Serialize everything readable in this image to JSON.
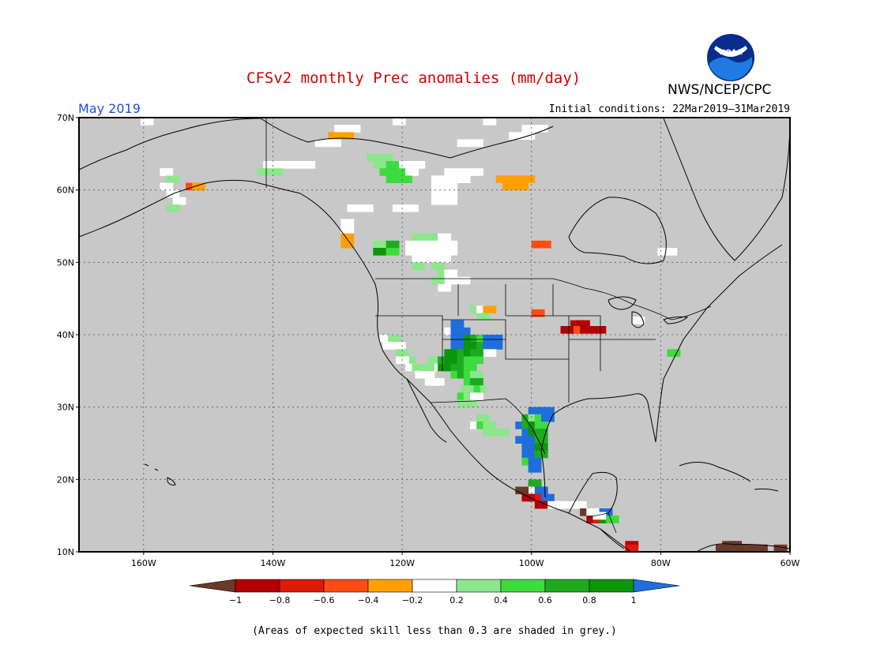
{
  "header": {
    "title": "CFSv2 monthly Prec anomalies (mm/day)",
    "month": "May 2019",
    "initial_conditions": "Initial conditions: 22Mar2019–31Mar2019",
    "agency": "NWS/NCEP/CPC",
    "logo_text": "NOAA"
  },
  "map": {
    "lon_range": [
      -170,
      -60
    ],
    "lat_range": [
      10,
      70
    ],
    "background_color": "#c8c8c8",
    "grid": true,
    "lat_ticks": [
      "10N",
      "20N",
      "30N",
      "40N",
      "50N",
      "60N",
      "70N"
    ],
    "lon_ticks": [
      "160W",
      "140W",
      "120W",
      "100W",
      "80W",
      "60W"
    ]
  },
  "legend": {
    "labels": [
      "−1",
      "−0.8",
      "−0.6",
      "−0.4",
      "−0.2",
      "0.2",
      "0.4",
      "0.6",
      "0.8",
      "1"
    ],
    "colors": [
      "#6b3a28",
      "#b40000",
      "#dc1a0a",
      "#ff4b14",
      "#ffa000",
      "#ffffff",
      "#8ce68c",
      "#3cdc3c",
      "#1eaa1e",
      "#0c960c",
      "#1e6edc"
    ]
  },
  "footnote": "(Areas of expected skill less than 0.3 are shaded in grey.)",
  "anomaly_cells": [
    {
      "lon": -160,
      "lat": 69.5,
      "v": "white"
    },
    {
      "lon": -130,
      "lat": 68.5,
      "v": "white"
    },
    {
      "lon": -128,
      "lat": 68.5,
      "v": "white"
    },
    {
      "lon": -129,
      "lat": 67.5,
      "v": "o04"
    },
    {
      "lon": -131,
      "lat": 67.5,
      "v": "o04"
    },
    {
      "lon": -121,
      "lat": 69.5,
      "v": "white"
    },
    {
      "lon": -107,
      "lat": 69.5,
      "v": "white"
    },
    {
      "lon": -101,
      "lat": 68.5,
      "v": "white"
    },
    {
      "lon": -99,
      "lat": 68.5,
      "v": "white"
    },
    {
      "lon": -103,
      "lat": 67.5,
      "v": "white"
    },
    {
      "lon": -101,
      "lat": 67.5,
      "v": "white"
    },
    {
      "lon": -133,
      "lat": 66.5,
      "v": "white"
    },
    {
      "lon": -131,
      "lat": 66.5,
      "v": "white"
    },
    {
      "lon": -109,
      "lat": 66.5,
      "v": "white"
    },
    {
      "lon": -111,
      "lat": 66.5,
      "v": "white"
    },
    {
      "lon": -125,
      "lat": 64.5,
      "v": "g02"
    },
    {
      "lon": -123,
      "lat": 64.5,
      "v": "g02"
    },
    {
      "lon": -124,
      "lat": 63.5,
      "v": "g02"
    },
    {
      "lon": -122,
      "lat": 63.5,
      "v": "g04"
    },
    {
      "lon": -120,
      "lat": 63.5,
      "v": "white"
    },
    {
      "lon": -118,
      "lat": 63.5,
      "v": "white"
    },
    {
      "lon": -123,
      "lat": 62.5,
      "v": "g04"
    },
    {
      "lon": -121,
      "lat": 62.5,
      "v": "g04"
    },
    {
      "lon": -119,
      "lat": 62.5,
      "v": "white"
    },
    {
      "lon": -122,
      "lat": 61.5,
      "v": "g04"
    },
    {
      "lon": -120,
      "lat": 61.5,
      "v": "g04"
    },
    {
      "lon": -141,
      "lat": 63.5,
      "v": "white"
    },
    {
      "lon": -139,
      "lat": 63.5,
      "v": "white"
    },
    {
      "lon": -137,
      "lat": 63.5,
      "v": "white"
    },
    {
      "lon": -135,
      "lat": 63.5,
      "v": "white"
    },
    {
      "lon": -142,
      "lat": 62.5,
      "v": "g02"
    },
    {
      "lon": -140,
      "lat": 62.5,
      "v": "g02"
    },
    {
      "lon": -157,
      "lat": 62.5,
      "v": "white"
    },
    {
      "lon": -156,
      "lat": 61.5,
      "v": "g02"
    },
    {
      "lon": -153,
      "lat": 60.5,
      "v": "o06"
    },
    {
      "lon": -152,
      "lat": 60.5,
      "v": "o04"
    },
    {
      "lon": -157,
      "lat": 60.5,
      "v": "white"
    },
    {
      "lon": -156,
      "lat": 59.5,
      "v": "white"
    },
    {
      "lon": -155,
      "lat": 58.5,
      "v": "white"
    },
    {
      "lon": -156,
      "lat": 57.5,
      "v": "g02"
    },
    {
      "lon": -113,
      "lat": 62.5,
      "v": "white"
    },
    {
      "lon": -111,
      "lat": 62.5,
      "v": "white"
    },
    {
      "lon": -109,
      "lat": 62.5,
      "v": "white"
    },
    {
      "lon": -115,
      "lat": 61.5,
      "v": "white"
    },
    {
      "lon": -113,
      "lat": 61.5,
      "v": "white"
    },
    {
      "lon": -111,
      "lat": 61.5,
      "v": "white"
    },
    {
      "lon": -115,
      "lat": 60.5,
      "v": "white"
    },
    {
      "lon": -113,
      "lat": 60.5,
      "v": "white"
    },
    {
      "lon": -115,
      "lat": 59.5,
      "v": "white"
    },
    {
      "lon": -113,
      "lat": 59.5,
      "v": "white"
    },
    {
      "lon": -115,
      "lat": 58.5,
      "v": "white"
    },
    {
      "lon": -113,
      "lat": 58.5,
      "v": "white"
    },
    {
      "lon": -105,
      "lat": 61.5,
      "v": "o04"
    },
    {
      "lon": -103,
      "lat": 61.5,
      "v": "o04"
    },
    {
      "lon": -101,
      "lat": 61.5,
      "v": "o04"
    },
    {
      "lon": -104,
      "lat": 60.5,
      "v": "o04"
    },
    {
      "lon": -102,
      "lat": 60.5,
      "v": "o04"
    },
    {
      "lon": -128,
      "lat": 57.5,
      "v": "white"
    },
    {
      "lon": -126,
      "lat": 57.5,
      "v": "white"
    },
    {
      "lon": -121,
      "lat": 57.5,
      "v": "white"
    },
    {
      "lon": -119,
      "lat": 57.5,
      "v": "white"
    },
    {
      "lon": -129,
      "lat": 55.5,
      "v": "white"
    },
    {
      "lon": -129,
      "lat": 54.5,
      "v": "white"
    },
    {
      "lon": -129,
      "lat": 53.5,
      "v": "o04"
    },
    {
      "lon": -129,
      "lat": 52.5,
      "v": "o04"
    },
    {
      "lon": -124,
      "lat": 52.5,
      "v": "g02"
    },
    {
      "lon": -122,
      "lat": 52.5,
      "v": "g06"
    },
    {
      "lon": -124,
      "lat": 51.5,
      "v": "g08"
    },
    {
      "lon": -122,
      "lat": 51.5,
      "v": "g04"
    },
    {
      "lon": -118,
      "lat": 53.5,
      "v": "g02"
    },
    {
      "lon": -116,
      "lat": 53.5,
      "v": "g02"
    },
    {
      "lon": -114,
      "lat": 53.5,
      "v": "white"
    },
    {
      "lon": -119,
      "lat": 52.5,
      "v": "white"
    },
    {
      "lon": -117,
      "lat": 52.5,
      "v": "white"
    },
    {
      "lon": -115,
      "lat": 52.5,
      "v": "white"
    },
    {
      "lon": -113,
      "lat": 52.5,
      "v": "white"
    },
    {
      "lon": -119,
      "lat": 51.5,
      "v": "white"
    },
    {
      "lon": -117,
      "lat": 51.5,
      "v": "white"
    },
    {
      "lon": -115,
      "lat": 51.5,
      "v": "white"
    },
    {
      "lon": -113,
      "lat": 51.5,
      "v": "white"
    },
    {
      "lon": -118,
      "lat": 50.5,
      "v": "white"
    },
    {
      "lon": -116,
      "lat": 50.5,
      "v": "white"
    },
    {
      "lon": -114,
      "lat": 50.5,
      "v": "white"
    },
    {
      "lon": -118,
      "lat": 49.5,
      "v": "g02"
    },
    {
      "lon": -115,
      "lat": 49.5,
      "v": "g02"
    },
    {
      "lon": -114,
      "lat": 48.5,
      "v": "g02"
    },
    {
      "lon": -113,
      "lat": 48.5,
      "v": "white"
    },
    {
      "lon": -113,
      "lat": 47.5,
      "v": "white"
    },
    {
      "lon": -111,
      "lat": 47.5,
      "v": "white"
    },
    {
      "lon": -115,
      "lat": 47.5,
      "v": "g02"
    },
    {
      "lon": -114,
      "lat": 46.5,
      "v": "white"
    },
    {
      "lon": -99.5,
      "lat": 52.5,
      "v": "o06"
    },
    {
      "lon": -98.5,
      "lat": 52.5,
      "v": "o06"
    },
    {
      "lon": -109,
      "lat": 43.5,
      "v": "g02"
    },
    {
      "lon": -108,
      "lat": 43.5,
      "v": "white"
    },
    {
      "lon": -107,
      "lat": 43.5,
      "v": "o04"
    },
    {
      "lon": -108,
      "lat": 42.5,
      "v": "g02"
    },
    {
      "lon": -99.5,
      "lat": 43,
      "v": "o06"
    },
    {
      "lon": -93.5,
      "lat": 41.5,
      "v": "r08"
    },
    {
      "lon": -92.5,
      "lat": 41.5,
      "v": "r08"
    },
    {
      "lon": -95,
      "lat": 40.7,
      "v": "r08"
    },
    {
      "lon": -94,
      "lat": 40.7,
      "v": "r08"
    },
    {
      "lon": -93,
      "lat": 40.7,
      "v": "o06"
    },
    {
      "lon": -92,
      "lat": 40.7,
      "v": "r08"
    },
    {
      "lon": -91,
      "lat": 40.7,
      "v": "r08"
    },
    {
      "lon": -90,
      "lat": 40.7,
      "v": "r08"
    },
    {
      "lon": -80,
      "lat": 51.5,
      "v": "white"
    },
    {
      "lon": -79,
      "lat": 51.5,
      "v": "white"
    },
    {
      "lon": -78.5,
      "lat": 37.5,
      "v": "g04"
    },
    {
      "lon": -84,
      "lat": 42,
      "v": "white"
    },
    {
      "lon": -123,
      "lat": 39.5,
      "v": "white"
    },
    {
      "lon": -121.7,
      "lat": 39.5,
      "v": "g02"
    },
    {
      "lon": -122.5,
      "lat": 38.5,
      "v": "white"
    },
    {
      "lon": -121,
      "lat": 38.5,
      "v": "white"
    },
    {
      "lon": -120.5,
      "lat": 37.5,
      "v": "g02"
    },
    {
      "lon": -119.5,
      "lat": 36.5,
      "v": "g02"
    },
    {
      "lon": -120.5,
      "lat": 36.5,
      "v": "white"
    },
    {
      "lon": -119,
      "lat": 35.5,
      "v": "white"
    },
    {
      "lon": -118,
      "lat": 35.5,
      "v": "g02"
    },
    {
      "lon": -117.5,
      "lat": 34.5,
      "v": "white"
    },
    {
      "lon": -116.5,
      "lat": 34.5,
      "v": "white"
    },
    {
      "lon": -116,
      "lat": 33.5,
      "v": "white"
    },
    {
      "lon": -115,
      "lat": 33.5,
      "v": "white"
    },
    {
      "lon": -116.5,
      "lat": 35.5,
      "v": "g02"
    },
    {
      "lon": -115.5,
      "lat": 36.5,
      "v": "g02"
    },
    {
      "lon": -114.5,
      "lat": 35.5,
      "v": "white"
    },
    {
      "lon": -113,
      "lat": 40.5,
      "v": "white"
    },
    {
      "lon": -112,
      "lat": 41.5,
      "v": "b"
    },
    {
      "lon": -112,
      "lat": 40.5,
      "v": "b"
    },
    {
      "lon": -111,
      "lat": 40.5,
      "v": "b"
    },
    {
      "lon": -112,
      "lat": 39.5,
      "v": "b"
    },
    {
      "lon": -111,
      "lat": 39.5,
      "v": "b"
    },
    {
      "lon": -112,
      "lat": 38.5,
      "v": "b"
    },
    {
      "lon": -110,
      "lat": 39.5,
      "v": "g08"
    },
    {
      "lon": -109,
      "lat": 39.5,
      "v": "g06"
    },
    {
      "lon": -108,
      "lat": 39.5,
      "v": "g04"
    },
    {
      "lon": -110,
      "lat": 38.5,
      "v": "g08"
    },
    {
      "lon": -109,
      "lat": 38.5,
      "v": "g08"
    },
    {
      "lon": -108,
      "lat": 38.5,
      "v": "g06"
    },
    {
      "lon": -107,
      "lat": 38.5,
      "v": "b"
    },
    {
      "lon": -106,
      "lat": 38.5,
      "v": "b"
    },
    {
      "lon": -107,
      "lat": 39.5,
      "v": "b"
    },
    {
      "lon": -106,
      "lat": 39.5,
      "v": "b"
    },
    {
      "lon": -107,
      "lat": 37.5,
      "v": "white"
    },
    {
      "lon": -113,
      "lat": 37.5,
      "v": "g08"
    },
    {
      "lon": -112,
      "lat": 37.5,
      "v": "g08"
    },
    {
      "lon": -111,
      "lat": 37.5,
      "v": "g06"
    },
    {
      "lon": -110,
      "lat": 37.5,
      "v": "g08"
    },
    {
      "lon": -109,
      "lat": 37.5,
      "v": "g06"
    },
    {
      "lon": -114,
      "lat": 36.5,
      "v": "g06"
    },
    {
      "lon": -113,
      "lat": 36.5,
      "v": "g08"
    },
    {
      "lon": -112,
      "lat": 36.5,
      "v": "g08"
    },
    {
      "lon": -111,
      "lat": 36.5,
      "v": "g06"
    },
    {
      "lon": -110,
      "lat": 36.5,
      "v": "g04"
    },
    {
      "lon": -109,
      "lat": 36.5,
      "v": "g04"
    },
    {
      "lon": -114,
      "lat": 35.5,
      "v": "g08"
    },
    {
      "lon": -113,
      "lat": 35.5,
      "v": "g08"
    },
    {
      "lon": -112,
      "lat": 35.5,
      "v": "g06"
    },
    {
      "lon": -111,
      "lat": 35.5,
      "v": "g06"
    },
    {
      "lon": -110,
      "lat": 35.5,
      "v": "g04"
    },
    {
      "lon": -112,
      "lat": 34.5,
      "v": "g04"
    },
    {
      "lon": -111,
      "lat": 34.5,
      "v": "g06"
    },
    {
      "lon": -110,
      "lat": 34.5,
      "v": "g04"
    },
    {
      "lon": -109,
      "lat": 34.5,
      "v": "g02"
    },
    {
      "lon": -110,
      "lat": 33.5,
      "v": "g04"
    },
    {
      "lon": -109,
      "lat": 33.5,
      "v": "g06"
    },
    {
      "lon": -108.5,
      "lat": 32.5,
      "v": "g02"
    },
    {
      "lon": -109.5,
      "lat": 32.5,
      "v": "g04"
    },
    {
      "lon": -110.5,
      "lat": 32.5,
      "v": "g02"
    },
    {
      "lon": -111,
      "lat": 31.5,
      "v": "g04"
    },
    {
      "lon": -110,
      "lat": 31.5,
      "v": "g02"
    },
    {
      "lon": -109,
      "lat": 31.5,
      "v": "white"
    },
    {
      "lon": -111,
      "lat": 30.5,
      "v": "g02"
    },
    {
      "lon": -110,
      "lat": 30.5,
      "v": "g02"
    },
    {
      "lon": -108,
      "lat": 28.5,
      "v": "g02"
    },
    {
      "lon": -109,
      "lat": 27.5,
      "v": "white"
    },
    {
      "lon": -108,
      "lat": 27.5,
      "v": "g04"
    },
    {
      "lon": -107,
      "lat": 27.5,
      "v": "g02"
    },
    {
      "lon": -106,
      "lat": 26.5,
      "v": "g02"
    },
    {
      "lon": -105,
      "lat": 26.5,
      "v": "g02"
    },
    {
      "lon": -107,
      "lat": 26.5,
      "v": "g02"
    },
    {
      "lon": -100,
      "lat": 29.5,
      "v": "b"
    },
    {
      "lon": -99,
      "lat": 29.5,
      "v": "b"
    },
    {
      "lon": -98,
      "lat": 29.5,
      "v": "b"
    },
    {
      "lon": -101,
      "lat": 28.5,
      "v": "g06"
    },
    {
      "lon": -100,
      "lat": 28.5,
      "v": "g02"
    },
    {
      "lon": -99,
      "lat": 28.5,
      "v": "g04"
    },
    {
      "lon": -98,
      "lat": 28.5,
      "v": "b"
    },
    {
      "lon": -102,
      "lat": 27.5,
      "v": "b"
    },
    {
      "lon": -101,
      "lat": 27.5,
      "v": "g06"
    },
    {
      "lon": -100,
      "lat": 27.5,
      "v": "g08"
    },
    {
      "lon": -99,
      "lat": 27.5,
      "v": "g04"
    },
    {
      "lon": -101,
      "lat": 26.5,
      "v": "b"
    },
    {
      "lon": -100,
      "lat": 26.5,
      "v": "g08"
    },
    {
      "lon": -99,
      "lat": 26.5,
      "v": "g06"
    },
    {
      "lon": -102,
      "lat": 25.5,
      "v": "b"
    },
    {
      "lon": -101,
      "lat": 25.5,
      "v": "b"
    },
    {
      "lon": -100,
      "lat": 25.5,
      "v": "b"
    },
    {
      "lon": -99,
      "lat": 25.5,
      "v": "g06"
    },
    {
      "lon": -101,
      "lat": 24.5,
      "v": "b"
    },
    {
      "lon": -100,
      "lat": 24.5,
      "v": "b"
    },
    {
      "lon": -99,
      "lat": 24.5,
      "v": "g08"
    },
    {
      "lon": -101,
      "lat": 23.5,
      "v": "b"
    },
    {
      "lon": -100,
      "lat": 23.5,
      "v": "b"
    },
    {
      "lon": -99,
      "lat": 23.5,
      "v": "g06"
    },
    {
      "lon": -101,
      "lat": 22.5,
      "v": "g04"
    },
    {
      "lon": -100,
      "lat": 22.5,
      "v": "b"
    },
    {
      "lon": -100,
      "lat": 21.5,
      "v": "b"
    },
    {
      "lon": -100,
      "lat": 19.5,
      "v": "g06"
    },
    {
      "lon": -101,
      "lat": 18.5,
      "v": "g08"
    },
    {
      "lon": -100,
      "lat": 18.5,
      "v": "white"
    },
    {
      "lon": -99,
      "lat": 18.5,
      "v": "b"
    },
    {
      "lon": -102,
      "lat": 18.5,
      "v": "br"
    },
    {
      "lon": -101,
      "lat": 17.5,
      "v": "r08"
    },
    {
      "lon": -100,
      "lat": 17.5,
      "v": "r08"
    },
    {
      "lon": -99,
      "lat": 17.5,
      "v": "r06"
    },
    {
      "lon": -98,
      "lat": 17.5,
      "v": "b"
    },
    {
      "lon": -99,
      "lat": 16.5,
      "v": "r08"
    },
    {
      "lon": -98,
      "lat": 16.5,
      "v": "r08"
    },
    {
      "lon": -97,
      "lat": 16.5,
      "v": "white"
    },
    {
      "lon": -94,
      "lat": 16.5,
      "v": "white"
    },
    {
      "lon": -93,
      "lat": 16.5,
      "v": "white"
    },
    {
      "lon": -96,
      "lat": 16.5,
      "v": "white"
    },
    {
      "lon": -92,
      "lat": 15.5,
      "v": "br"
    },
    {
      "lon": -91,
      "lat": 15.5,
      "v": "white"
    },
    {
      "lon": -91,
      "lat": 14.5,
      "v": "r08"
    },
    {
      "lon": -90,
      "lat": 14.5,
      "v": "r06"
    },
    {
      "lon": -89,
      "lat": 15.5,
      "v": "b"
    },
    {
      "lon": -89,
      "lat": 14.5,
      "v": "g08"
    },
    {
      "lon": -88,
      "lat": 14.5,
      "v": "g04"
    },
    {
      "lon": -90,
      "lat": 15,
      "v": "white"
    },
    {
      "lon": -85,
      "lat": 11,
      "v": "r08"
    },
    {
      "lon": -85,
      "lat": 10.5,
      "v": "r06"
    },
    {
      "lon": -70,
      "lat": 11,
      "v": "br"
    },
    {
      "lon": -69,
      "lat": 11,
      "v": "br"
    },
    {
      "lon": -71,
      "lat": 10.5,
      "v": "br"
    },
    {
      "lon": -70,
      "lat": 10.5,
      "v": "br"
    },
    {
      "lon": -68,
      "lat": 10.5,
      "v": "br"
    },
    {
      "lon": -67,
      "lat": 10.5,
      "v": "br"
    },
    {
      "lon": -65,
      "lat": 10.5,
      "v": "br"
    },
    {
      "lon": -62,
      "lat": 10.5,
      "v": "br"
    }
  ]
}
